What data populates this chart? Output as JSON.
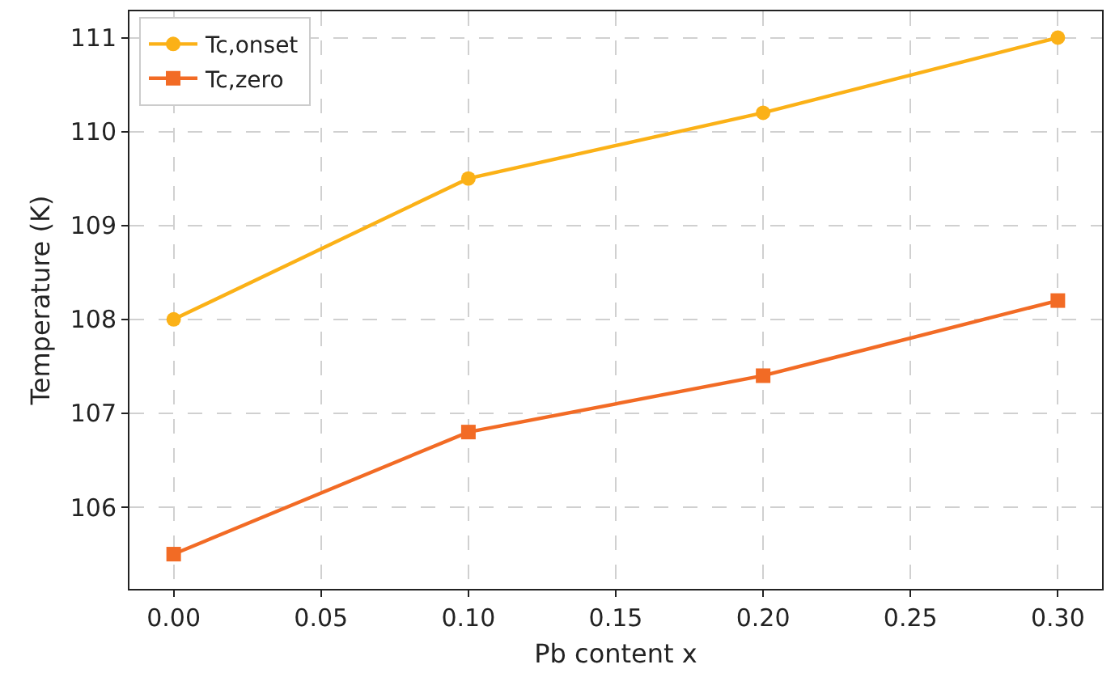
{
  "chart_data": {
    "type": "line",
    "xlabel": "Pb content x",
    "ylabel": "Temperature (K)",
    "x": [
      0.0,
      0.1,
      0.2,
      0.3
    ],
    "series": [
      {
        "name": "Tc,onset",
        "color": "#fbb117",
        "values": [
          108.0,
          109.5,
          110.2,
          111.0
        ],
        "marker": "circle"
      },
      {
        "name": "Tc,zero",
        "color": "#f26b25",
        "values": [
          105.5,
          106.8,
          107.4,
          108.2
        ],
        "marker": "square"
      }
    ],
    "xlim": [
      -0.015,
      0.315
    ],
    "ylim": [
      105.13,
      111.28
    ],
    "xticks": [
      {
        "value": 0,
        "label": "0.00"
      },
      {
        "value": 0.05,
        "label": "0.05"
      },
      {
        "value": 0.1,
        "label": "0.10"
      },
      {
        "value": 0.15,
        "label": "0.15"
      },
      {
        "value": 0.2,
        "label": "0.20"
      },
      {
        "value": 0.25,
        "label": "0.25"
      },
      {
        "value": 0.3,
        "label": "0.30"
      }
    ],
    "yticks": [
      106,
      107,
      108,
      109,
      110,
      111
    ],
    "grid": true,
    "legend": "top left",
    "line_style": "solid"
  }
}
